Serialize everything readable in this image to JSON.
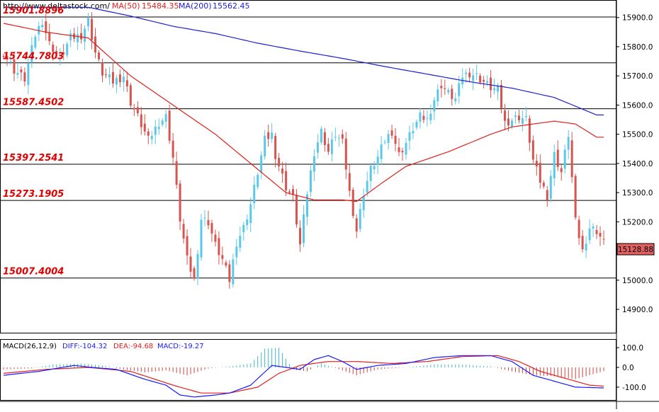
{
  "header": {
    "url": "http://www.deltastock.com/",
    "ma50_label": "MA(50)",
    "ma50_value": "15484.35",
    "ma200_label": "MA(200)",
    "ma200_value": "15562.45"
  },
  "macd_header": {
    "label": "MACD(26,12,9)",
    "diff": "DIFF:-104.32",
    "dea": "DEA:-94.68",
    "macd": "MACD:-19.27"
  },
  "price_tag": "15128.88",
  "colors": {
    "up": "#5bc8e8",
    "down": "#d9534f",
    "ma50": "#e02020",
    "ma200": "#2020d0",
    "level_text": "#e00000",
    "diff": "#1a1aff",
    "dea": "#e02020",
    "hist": "#d04040",
    "hist_up": "#40b8c8"
  },
  "chart_data": [
    {
      "type": "candlestick",
      "title": "",
      "ylim": [
        14820,
        15960
      ],
      "yticks": [
        "15900.0",
        "15800.0",
        "15700.0",
        "15600.0",
        "15500.0",
        "15400.0",
        "15300.0",
        "15200.0",
        "15100.0",
        "15000.0",
        "14900.0"
      ],
      "ytick_values": [
        15900,
        15800,
        15700,
        15600,
        15500,
        15400,
        15300,
        15200,
        15100,
        15000,
        14900
      ],
      "levels": [
        {
          "label": "15901.8896",
          "value": 15901.8896
        },
        {
          "label": "15744.7803",
          "value": 15744.7803
        },
        {
          "label": "15587.4502",
          "value": 15587.4502
        },
        {
          "label": "15397.2541",
          "value": 15397.2541
        },
        {
          "label": "15273.1905",
          "value": 15273.1905
        },
        {
          "label": "15007.4004",
          "value": 15007.4004
        }
      ],
      "last_price": 15128.88,
      "anchors": [
        [
          0,
          15780
        ],
        [
          3,
          15720
        ],
        [
          6,
          15690
        ],
        [
          9,
          15840
        ],
        [
          11,
          15890
        ],
        [
          13,
          15810
        ],
        [
          16,
          15760
        ],
        [
          19,
          15830
        ],
        [
          22,
          15840
        ],
        [
          24,
          15890
        ],
        [
          26,
          15780
        ],
        [
          28,
          15710
        ],
        [
          31,
          15680
        ],
        [
          34,
          15700
        ],
        [
          36,
          15610
        ],
        [
          38,
          15560
        ],
        [
          41,
          15480
        ],
        [
          44,
          15540
        ],
        [
          46,
          15560
        ],
        [
          48,
          15420
        ],
        [
          50,
          15210
        ],
        [
          52,
          15070
        ],
        [
          54,
          15000
        ],
        [
          56,
          15210
        ],
        [
          58,
          15200
        ],
        [
          60,
          15120
        ],
        [
          62,
          15070
        ],
        [
          64,
          15000
        ],
        [
          66,
          15130
        ],
        [
          68,
          15180
        ],
        [
          70,
          15260
        ],
        [
          72,
          15370
        ],
        [
          74,
          15480
        ],
        [
          76,
          15500
        ],
        [
          77,
          15430
        ],
        [
          80,
          15320
        ],
        [
          82,
          15280
        ],
        [
          84,
          15120
        ],
        [
          86,
          15300
        ],
        [
          88,
          15440
        ],
        [
          90,
          15510
        ],
        [
          92,
          15440
        ],
        [
          94,
          15500
        ],
        [
          96,
          15470
        ],
        [
          98,
          15300
        ],
        [
          100,
          15170
        ],
        [
          102,
          15300
        ],
        [
          104,
          15380
        ],
        [
          106,
          15420
        ],
        [
          108,
          15480
        ],
        [
          110,
          15510
        ],
        [
          112,
          15430
        ],
        [
          114,
          15470
        ],
        [
          116,
          15520
        ],
        [
          118,
          15560
        ],
        [
          120,
          15550
        ],
        [
          122,
          15620
        ],
        [
          124,
          15670
        ],
        [
          126,
          15640
        ],
        [
          128,
          15620
        ],
        [
          130,
          15700
        ],
        [
          132,
          15710
        ],
        [
          134,
          15700
        ],
        [
          136,
          15680
        ],
        [
          138,
          15660
        ],
        [
          140,
          15650
        ],
        [
          142,
          15540
        ],
        [
          144,
          15550
        ],
        [
          146,
          15560
        ],
        [
          148,
          15550
        ],
        [
          150,
          15410
        ],
        [
          152,
          15340
        ],
        [
          154,
          15290
        ],
        [
          156,
          15430
        ],
        [
          158,
          15370
        ],
        [
          160,
          15500
        ],
        [
          162,
          15200
        ],
        [
          164,
          15100
        ],
        [
          166,
          15180
        ],
        [
          168,
          15170
        ],
        [
          170,
          15129
        ]
      ],
      "ma50": [
        [
          0,
          15880
        ],
        [
          12,
          15850
        ],
        [
          24,
          15830
        ],
        [
          36,
          15700
        ],
        [
          48,
          15600
        ],
        [
          60,
          15500
        ],
        [
          72,
          15380
        ],
        [
          80,
          15300
        ],
        [
          88,
          15275
        ],
        [
          96,
          15275
        ],
        [
          100,
          15270
        ],
        [
          108,
          15340
        ],
        [
          114,
          15390
        ],
        [
          120,
          15415
        ],
        [
          126,
          15440
        ],
        [
          132,
          15470
        ],
        [
          138,
          15500
        ],
        [
          144,
          15525
        ],
        [
          150,
          15535
        ],
        [
          156,
          15545
        ],
        [
          162,
          15535
        ],
        [
          168,
          15490
        ]
      ],
      "ma200": [
        [
          0,
          15935
        ],
        [
          12,
          15935
        ],
        [
          24,
          15935
        ],
        [
          36,
          15905
        ],
        [
          48,
          15870
        ],
        [
          60,
          15845
        ],
        [
          72,
          15812
        ],
        [
          84,
          15785
        ],
        [
          96,
          15760
        ],
        [
          108,
          15732
        ],
        [
          120,
          15706
        ],
        [
          132,
          15680
        ],
        [
          144,
          15658
        ],
        [
          156,
          15626
        ],
        [
          168,
          15566
        ]
      ]
    },
    {
      "type": "macd",
      "title": "",
      "ylim": [
        -165,
        140
      ],
      "yticks": [
        "100.0",
        "0.0",
        "-100.0"
      ],
      "ytick_values": [
        100,
        0,
        -100
      ],
      "diff": [
        [
          0,
          -40
        ],
        [
          10,
          -20
        ],
        [
          20,
          10
        ],
        [
          25,
          0
        ],
        [
          32,
          -10
        ],
        [
          40,
          -60
        ],
        [
          46,
          -90
        ],
        [
          50,
          -140
        ],
        [
          54,
          -150
        ],
        [
          60,
          -140
        ],
        [
          64,
          -130
        ],
        [
          70,
          -90
        ],
        [
          76,
          10
        ],
        [
          80,
          0
        ],
        [
          84,
          -10
        ],
        [
          88,
          40
        ],
        [
          92,
          60
        ],
        [
          96,
          30
        ],
        [
          100,
          -10
        ],
        [
          106,
          10
        ],
        [
          114,
          20
        ],
        [
          122,
          50
        ],
        [
          130,
          60
        ],
        [
          138,
          60
        ],
        [
          144,
          30
        ],
        [
          150,
          -40
        ],
        [
          156,
          -70
        ],
        [
          162,
          -100
        ],
        [
          170,
          -104
        ]
      ],
      "dea": [
        [
          0,
          -30
        ],
        [
          12,
          -10
        ],
        [
          24,
          0
        ],
        [
          36,
          -20
        ],
        [
          48,
          -90
        ],
        [
          56,
          -130
        ],
        [
          64,
          -130
        ],
        [
          72,
          -100
        ],
        [
          78,
          -30
        ],
        [
          84,
          10
        ],
        [
          92,
          30
        ],
        [
          100,
          30
        ],
        [
          110,
          20
        ],
        [
          120,
          30
        ],
        [
          130,
          55
        ],
        [
          140,
          60
        ],
        [
          146,
          30
        ],
        [
          152,
          -20
        ],
        [
          160,
          -60
        ],
        [
          166,
          -90
        ],
        [
          170,
          -95
        ]
      ],
      "hist": [
        [
          0,
          -10
        ],
        [
          8,
          -5
        ],
        [
          14,
          15
        ],
        [
          22,
          20
        ],
        [
          28,
          10
        ],
        [
          34,
          -10
        ],
        [
          40,
          -25
        ],
        [
          46,
          -15
        ],
        [
          52,
          -40
        ],
        [
          58,
          -5
        ],
        [
          64,
          5
        ],
        [
          70,
          20
        ],
        [
          74,
          95
        ],
        [
          78,
          100
        ],
        [
          82,
          -10
        ],
        [
          86,
          -20
        ],
        [
          90,
          20
        ],
        [
          96,
          -15
        ],
        [
          100,
          -40
        ],
        [
          106,
          -10
        ],
        [
          114,
          0
        ],
        [
          122,
          15
        ],
        [
          130,
          15
        ],
        [
          138,
          5
        ],
        [
          144,
          -20
        ],
        [
          150,
          -40
        ],
        [
          156,
          -45
        ],
        [
          162,
          -60
        ],
        [
          170,
          -19
        ]
      ]
    }
  ]
}
